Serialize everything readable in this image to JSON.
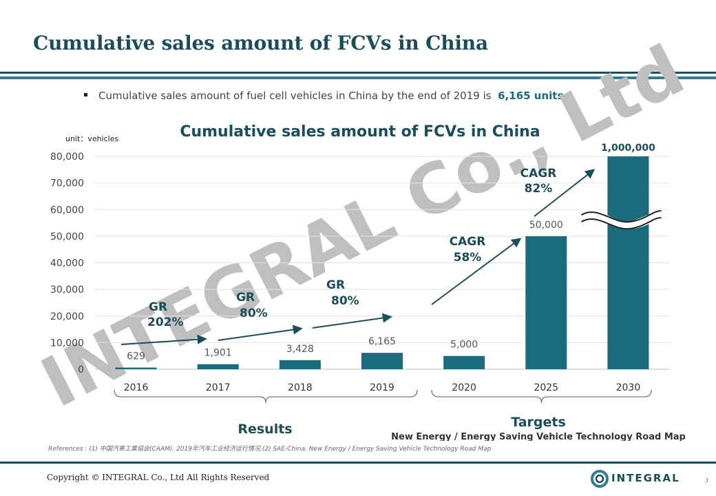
{
  "page": {
    "title": "Cumulative sales amount of FCVs in China",
    "bullet_prefix": "Cumulative sales amount of fuel cell vehicles in China by the end of 2019 is",
    "bullet_highlight": "6,165 units.",
    "references": "References : (1) 中国汽車工業協会(CAAM). 2019年汽车工业经济运行情况.(2) SAE-China. New Energy / Energy Saving Vehicle Technology Road Map",
    "copyright": "Copyright © INTEGRAL   Co., Ltd All Rights Reserved",
    "logo_text": "INTEGRAL",
    "page_number": "3",
    "watermark": "INTEGRAL Co., Ltd"
  },
  "chart_data": {
    "type": "bar",
    "title": "Cumulative sales amount of FCVs in China",
    "unit_label": "unit：vehicles",
    "categories": [
      "2016",
      "2017",
      "2018",
      "2019",
      "2020",
      "2025",
      "2030"
    ],
    "values": [
      629,
      1901,
      3428,
      6165,
      5000,
      50000,
      1000000
    ],
    "value_labels": [
      "629",
      "1,901",
      "3,428",
      "6,165",
      "5,000",
      "50,000",
      "1,000,000"
    ],
    "ylim": [
      0,
      80000
    ],
    "y_ticks": [
      0,
      10000,
      20000,
      30000,
      40000,
      50000,
      60000,
      70000,
      80000
    ],
    "y_tick_labels": [
      "0",
      "10,000",
      "20,000",
      "30,000",
      "40,000",
      "50,000",
      "60,000",
      "70,000",
      "80,000"
    ],
    "axis_break_category": "2030",
    "bar_color": "#1a6b7c",
    "grid": true,
    "growth_annotations": [
      {
        "label": "GR",
        "value": "202%"
      },
      {
        "label": "GR",
        "value": "80%"
      },
      {
        "label": "GR",
        "value": "80%"
      },
      {
        "label": "CAGR",
        "value": "58%"
      },
      {
        "label": "CAGR",
        "value": "82%"
      }
    ],
    "groups": [
      {
        "label": "Results",
        "sublabel": "",
        "categories": [
          "2016",
          "2017",
          "2018",
          "2019"
        ]
      },
      {
        "label": "Targets",
        "sublabel": "New Energy / Energy Saving Vehicle Technology Road Map",
        "categories": [
          "2020",
          "2025",
          "2030"
        ]
      }
    ]
  }
}
